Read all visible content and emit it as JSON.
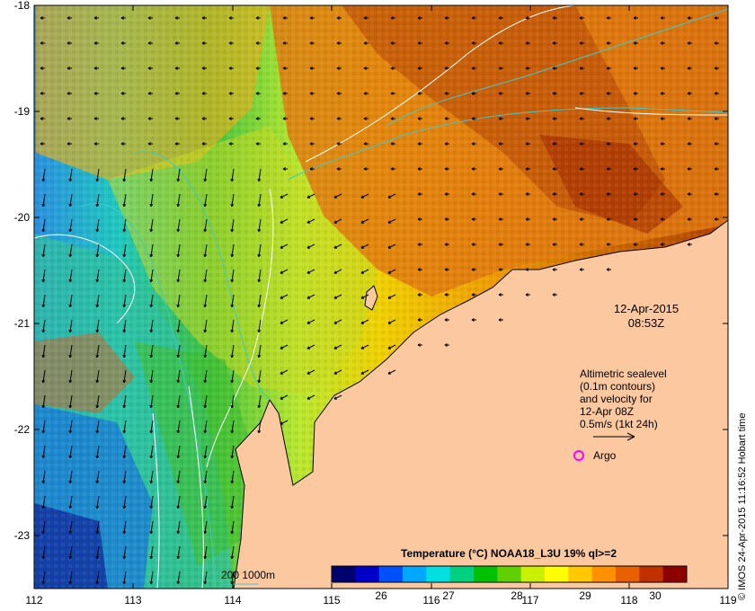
{
  "date_label": {
    "line1": "12-Apr-2015",
    "line2": "08:53Z"
  },
  "altimetry_note": {
    "line1": "Altimetric sealevel",
    "line2": "(0.1m contours)",
    "line3": "and velocity for",
    "line4": "12-Apr 08Z",
    "line5": "0.5m/s (1kt 24h)"
  },
  "argo_label": "Argo",
  "depth_legend": "200  1000m",
  "colorbar": {
    "title": "Temperature (°C) NOAA18_L3U 19% ql>=2",
    "ticks": [
      "26",
      "27",
      "28",
      "29",
      "30"
    ],
    "colors": [
      "#00006e",
      "#0000c8",
      "#0050ff",
      "#00a8ff",
      "#00e0e0",
      "#00d080",
      "#00c000",
      "#60d000",
      "#c8f000",
      "#ffff00",
      "#ffc800",
      "#ff9000",
      "#e86000",
      "#c03000",
      "#8c0000"
    ]
  },
  "credit": "© IMOS 24-Apr-2015 11:16:52 Hobart time",
  "axes": {
    "x_ticks": [
      "112",
      "113",
      "114",
      "115",
      "116",
      "117",
      "118",
      "119"
    ],
    "y_ticks": [
      "-18",
      "-19",
      "-20",
      "-21",
      "-22",
      "-23"
    ]
  },
  "colors": {
    "land": "#fcc8a0",
    "argo_marker": "#ff00ff",
    "shelf_contour": "#40c8c8",
    "sealevel_contour": "#ffffff"
  }
}
